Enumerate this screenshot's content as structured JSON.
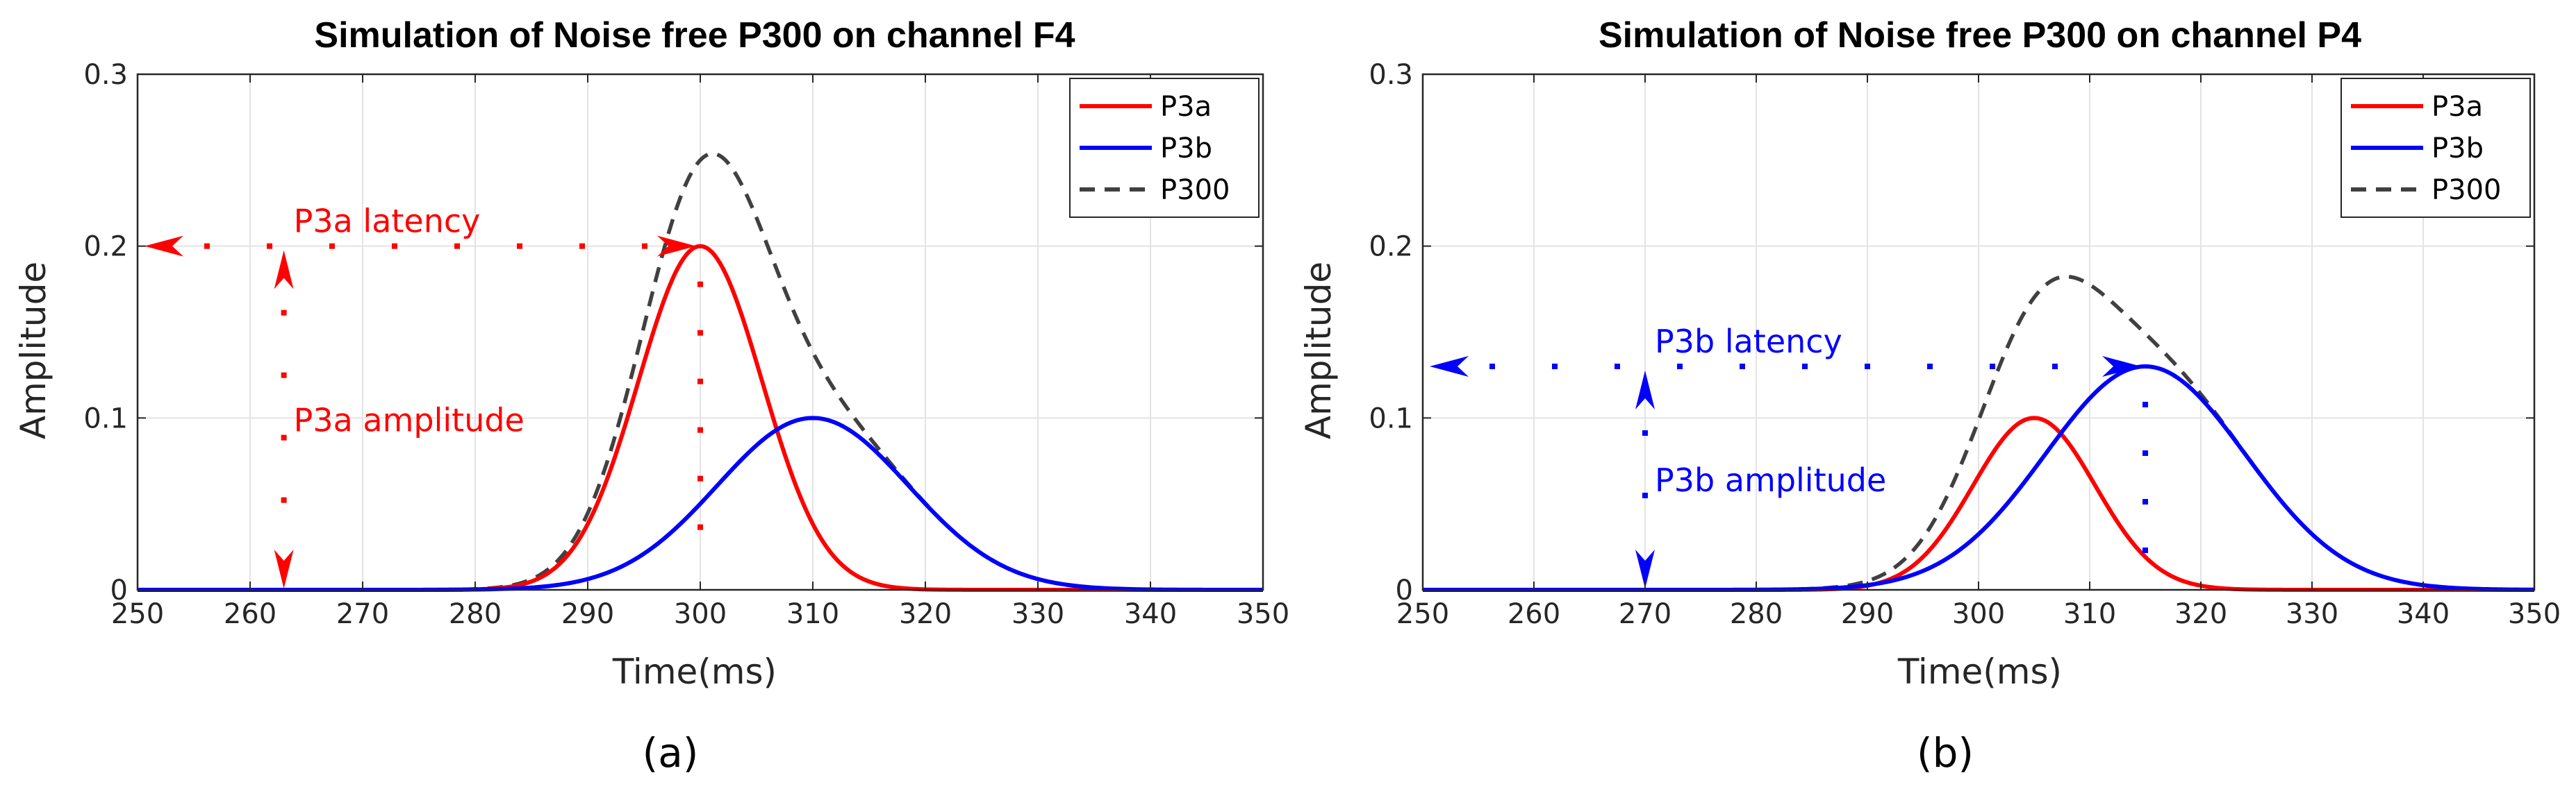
{
  "chart_data": [
    {
      "type": "line",
      "title": "Simulation of Noise free P300 on channel F4",
      "xlabel": "Time(ms)",
      "ylabel": "Amplitude",
      "xlim": [
        250,
        350
      ],
      "ylim": [
        0,
        0.3
      ],
      "xticks": [
        250,
        260,
        270,
        280,
        290,
        300,
        310,
        320,
        330,
        340,
        350
      ],
      "yticks": [
        0,
        0.1,
        0.2,
        0.3
      ],
      "xtick_labels": [
        "250",
        "260",
        "270",
        "280",
        "290",
        "300",
        "310",
        "320",
        "330",
        "340",
        "350"
      ],
      "ytick_labels": [
        "0",
        "0.1",
        "0.2",
        "0.3"
      ],
      "grid": true,
      "legend_position": "top-right",
      "series": [
        {
          "name": "P3a",
          "style": "solid",
          "color": "#ff0000",
          "peak_time": 300,
          "peak_amplitude": 0.2,
          "width_ms": 5.5
        },
        {
          "name": "P3b",
          "style": "solid",
          "color": "#0000ff",
          "peak_time": 310,
          "peak_amplitude": 0.1,
          "width_ms": 8.5
        },
        {
          "name": "P300",
          "style": "dashed",
          "color": "#404040",
          "sum_of": [
            "P3a",
            "P3b"
          ]
        }
      ],
      "annotations": {
        "latency_label": "P3a latency",
        "amplitude_label": "P3a amplitude",
        "color": "#ff0000",
        "latency_arrow": {
          "from_x": 250,
          "to_x": 300,
          "y": 0.2
        },
        "amplitude_arrow": {
          "x": 263,
          "from_y": 0,
          "to_y": 0.2
        },
        "peak_drop_x": 300
      },
      "caption": "(a)"
    },
    {
      "type": "line",
      "title": "Simulation of Noise free P300 on channel P4",
      "xlabel": "Time(ms)",
      "ylabel": "Amplitude",
      "xlim": [
        250,
        350
      ],
      "ylim": [
        0,
        0.3
      ],
      "xticks": [
        250,
        260,
        270,
        280,
        290,
        300,
        310,
        320,
        330,
        340,
        350
      ],
      "yticks": [
        0,
        0.1,
        0.2,
        0.3
      ],
      "xtick_labels": [
        "250",
        "260",
        "270",
        "280",
        "290",
        "300",
        "310",
        "320",
        "330",
        "340",
        "350"
      ],
      "ytick_labels": [
        "0",
        "0.1",
        "0.2",
        "0.3"
      ],
      "grid": true,
      "legend_position": "top-right",
      "series": [
        {
          "name": "P3a",
          "style": "solid",
          "color": "#ff0000",
          "peak_time": 305,
          "peak_amplitude": 0.1,
          "width_ms": 5.5
        },
        {
          "name": "P3b",
          "style": "solid",
          "color": "#0000ff",
          "peak_time": 315,
          "peak_amplitude": 0.13,
          "width_ms": 9.0
        },
        {
          "name": "P300",
          "style": "dashed",
          "color": "#404040",
          "sum_of": [
            "P3a",
            "P3b"
          ]
        }
      ],
      "annotations": {
        "latency_label": "P3b latency",
        "amplitude_label": "P3b amplitude",
        "color": "#0000ff",
        "latency_arrow": {
          "from_x": 250,
          "to_x": 315,
          "y": 0.13
        },
        "amplitude_arrow": {
          "x": 270,
          "from_y": 0,
          "to_y": 0.13
        },
        "peak_drop_x": 315
      },
      "caption": "(b)"
    }
  ]
}
